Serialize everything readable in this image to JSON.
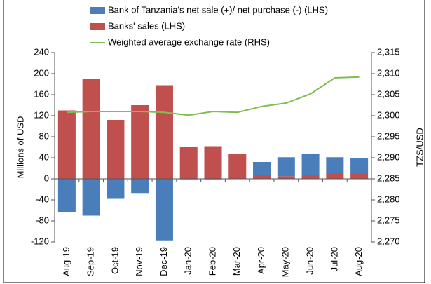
{
  "chart_data": {
    "type": "bar-line",
    "y_label": "Millions of USD",
    "y2_label": "TZS/USD",
    "categories": [
      "Aug-19",
      "Sep-19",
      "Oct-19",
      "Nov-19",
      "Dec-19",
      "Jan-20",
      "Feb-20",
      "Mar-20",
      "Apr-20",
      "May-20",
      "Jun-20",
      "Jul-20",
      "Aug-20"
    ],
    "series": [
      {
        "name": "Bank of Tanzania's net sale (+)/ net purchase (-) (LHS)",
        "type": "bar",
        "color": "#4a7ebb",
        "values": [
          -63,
          -70,
          -38,
          -27,
          -117,
          -1,
          -1,
          0,
          25,
          36,
          40,
          29,
          28
        ]
      },
      {
        "name": "Banks' sales (LHS)",
        "type": "bar",
        "color": "#c0504d",
        "values": [
          130,
          190,
          112,
          140,
          178,
          60,
          62,
          48,
          7,
          5,
          8,
          12,
          12
        ]
      },
      {
        "name": "Weighted average exchange rate (RHS)",
        "type": "line",
        "axis": "y2",
        "color": "#7ebd52",
        "values": [
          2300.8,
          2301,
          2301,
          2301,
          2300.8,
          2300.1,
          2301,
          2300.8,
          2302.2,
          2303,
          2305.2,
          2309,
          2309.2
        ]
      }
    ],
    "ylim": [
      -120,
      240
    ],
    "yticks": [
      -120,
      -80,
      -40,
      0,
      40,
      80,
      120,
      160,
      200,
      240
    ],
    "y2lim": [
      2270,
      2315
    ],
    "y2ticks": [
      {
        "value": 2270,
        "label": "2,270"
      },
      {
        "value": 2275,
        "label": "2,275"
      },
      {
        "value": 2280,
        "label": "2,280"
      },
      {
        "value": 2285,
        "label": "2,285"
      },
      {
        "value": 2290,
        "label": "2,290"
      },
      {
        "value": 2295,
        "label": "2,295"
      },
      {
        "value": 2300,
        "label": "2,300"
      },
      {
        "value": 2305,
        "label": "2,305"
      },
      {
        "value": 2310,
        "label": "2,310"
      },
      {
        "value": 2315,
        "label": "2,315"
      }
    ],
    "grid": false
  }
}
